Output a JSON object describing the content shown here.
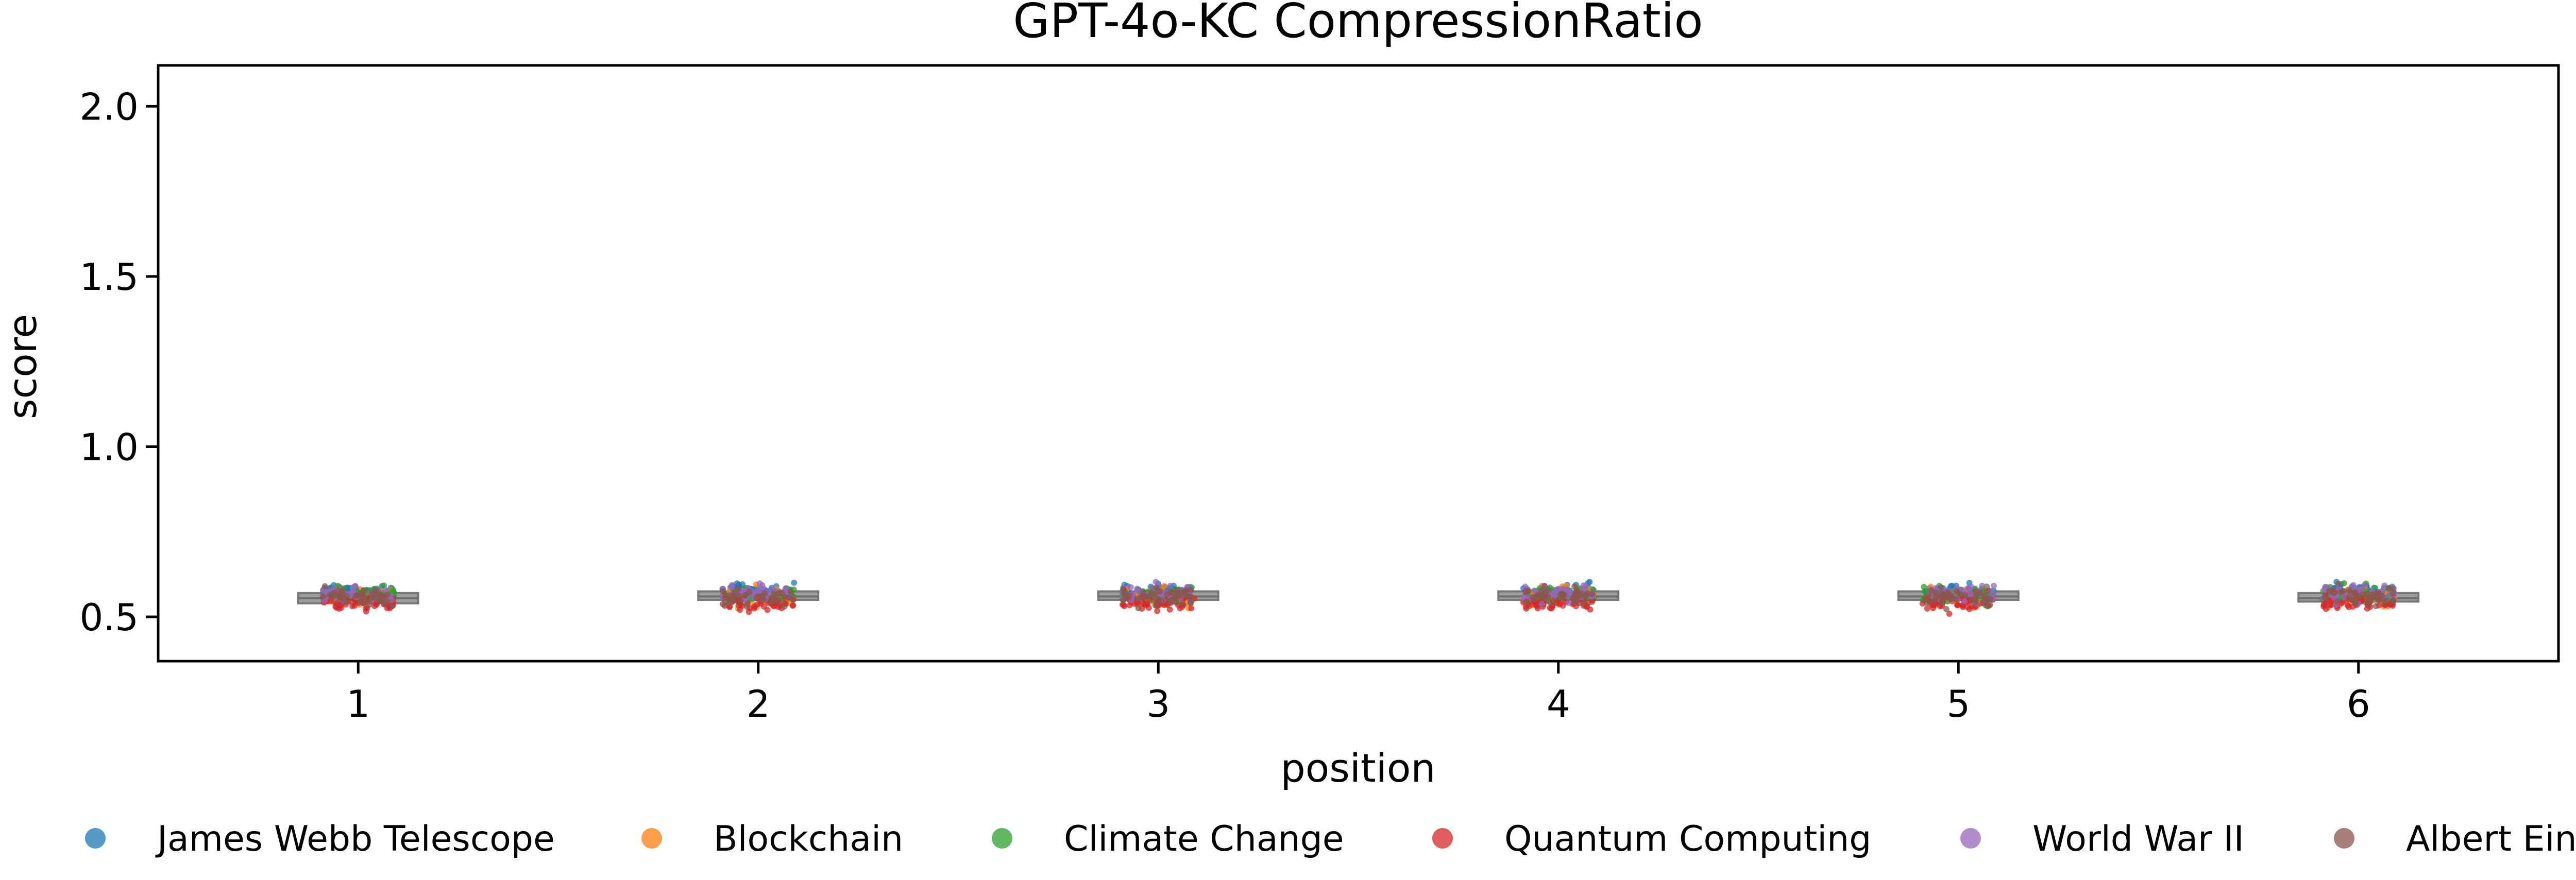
{
  "chart_data": {
    "type": "box-strip",
    "title": "GPT-4o-KC CompressionRatio",
    "xlabel": "position",
    "ylabel": "score",
    "ylim": [
      0.37,
      2.12
    ],
    "yticks": [
      0.5,
      1.0,
      1.5,
      2.0
    ],
    "ytick_labels": [
      "0.5",
      "1.0",
      "1.5",
      "2.0"
    ],
    "categories": [
      "1",
      "2",
      "3",
      "4",
      "5",
      "6"
    ],
    "x": [
      1,
      2,
      3,
      4,
      5,
      6
    ],
    "xlim": [
      0.5,
      6.5
    ],
    "grid": false,
    "legend_placement": "bottom",
    "box_color": "#8c8c8c",
    "boxes": [
      {
        "position": 1,
        "q1": 0.54,
        "median": 0.555,
        "q3": 0.57
      },
      {
        "position": 2,
        "q1": 0.55,
        "median": 0.56,
        "q3": 0.575
      },
      {
        "position": 3,
        "q1": 0.55,
        "median": 0.56,
        "q3": 0.575
      },
      {
        "position": 4,
        "q1": 0.55,
        "median": 0.56,
        "q3": 0.575
      },
      {
        "position": 5,
        "q1": 0.55,
        "median": 0.56,
        "q3": 0.575
      },
      {
        "position": 6,
        "q1": 0.545,
        "median": 0.555,
        "q3": 0.57
      }
    ],
    "series": [
      {
        "name": "James Webb Telescope",
        "color": "#1f77b4",
        "center": 0.575,
        "spread": 0.02
      },
      {
        "name": "Blockchain",
        "color": "#ff7f0e",
        "center": 0.56,
        "spread": 0.022
      },
      {
        "name": "Climate Change",
        "color": "#2ca02c",
        "center": 0.565,
        "spread": 0.02
      },
      {
        "name": "Quantum Computing",
        "color": "#d62728",
        "center": 0.54,
        "spread": 0.018
      },
      {
        "name": "World War II",
        "color": "#9467bd",
        "center": 0.57,
        "spread": 0.02
      },
      {
        "name": "Albert Einstein",
        "color": "#8c564b",
        "center": 0.56,
        "spread": 0.022
      }
    ]
  }
}
